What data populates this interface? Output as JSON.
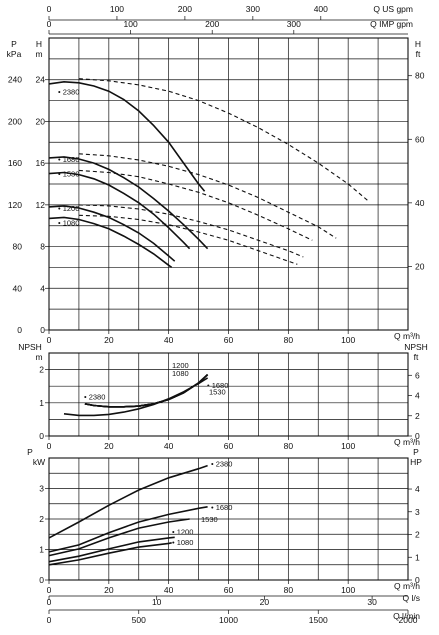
{
  "chart_data": [
    {
      "id": "head",
      "type": "line",
      "xlabel": "Q m³/h",
      "xlim": [
        0,
        120
      ],
      "xticks": [
        0,
        20,
        40,
        60,
        80,
        100
      ],
      "ylim": [
        0,
        28
      ],
      "yticks": [
        0,
        4,
        8,
        12,
        16,
        20,
        24
      ],
      "ylabel_left": "H",
      "yunit_left": "m",
      "y2label_left": "P",
      "y2unit_left": "kPa",
      "y2ticks_left": [
        0,
        40,
        80,
        120,
        160,
        200,
        240
      ],
      "ylabel_right": "H",
      "yunit_right": "ft",
      "yticks_right": [
        20,
        40,
        60,
        80
      ],
      "series": [
        {
          "name": "2380",
          "style": "solid",
          "x": [
            0,
            5,
            10,
            15,
            20,
            25,
            30,
            35,
            40,
            45,
            50,
            52
          ],
          "y": [
            23.6,
            23.8,
            23.7,
            23.4,
            22.9,
            22.1,
            21.0,
            19.6,
            18.0,
            16.0,
            14.0,
            13.3
          ]
        },
        {
          "name": "1680",
          "style": "solid",
          "x": [
            0,
            5,
            10,
            15,
            20,
            25,
            30,
            35,
            40,
            45,
            50,
            53
          ],
          "y": [
            16.5,
            16.6,
            16.4,
            16.0,
            15.4,
            14.6,
            13.7,
            12.6,
            11.4,
            10.1,
            8.7,
            7.8
          ]
        },
        {
          "name": "1530",
          "style": "solid",
          "x": [
            0,
            5,
            10,
            15,
            20,
            25,
            30,
            35,
            40,
            45,
            47
          ],
          "y": [
            15.0,
            15.1,
            14.9,
            14.5,
            13.9,
            13.1,
            12.2,
            11.1,
            9.8,
            8.4,
            7.8
          ]
        },
        {
          "name": "1200",
          "style": "solid",
          "x": [
            0,
            5,
            10,
            15,
            20,
            25,
            30,
            35,
            40,
            42
          ],
          "y": [
            11.8,
            11.9,
            11.7,
            11.3,
            10.8,
            10.1,
            9.3,
            8.3,
            7.1,
            6.6
          ]
        },
        {
          "name": "1080",
          "style": "solid",
          "x": [
            0,
            5,
            10,
            15,
            20,
            25,
            30,
            35,
            40,
            41
          ],
          "y": [
            10.7,
            10.8,
            10.6,
            10.2,
            9.7,
            9.0,
            8.2,
            7.3,
            6.2,
            6.0
          ]
        },
        {
          "name": "2380",
          "style": "dashed",
          "x": [
            10,
            20,
            30,
            40,
            50,
            60,
            70,
            80,
            90,
            100,
            107
          ],
          "y": [
            24.1,
            23.9,
            23.5,
            22.9,
            22.0,
            20.8,
            19.4,
            17.8,
            16.0,
            14.0,
            12.3
          ]
        },
        {
          "name": "1680",
          "style": "dashed",
          "x": [
            10,
            20,
            30,
            40,
            50,
            60,
            70,
            80,
            90,
            96
          ],
          "y": [
            16.9,
            16.7,
            16.3,
            15.7,
            14.9,
            13.9,
            12.7,
            11.3,
            9.9,
            8.8
          ]
        },
        {
          "name": "1530",
          "style": "dashed",
          "x": [
            10,
            20,
            30,
            40,
            50,
            60,
            70,
            80,
            88
          ],
          "y": [
            15.3,
            15.1,
            14.7,
            14.0,
            13.2,
            12.2,
            11.0,
            9.7,
            8.6
          ]
        },
        {
          "name": "1200",
          "style": "dashed",
          "x": [
            10,
            20,
            30,
            40,
            50,
            60,
            70,
            80,
            85
          ],
          "y": [
            12.0,
            11.9,
            11.6,
            11.1,
            10.4,
            9.6,
            8.6,
            7.6,
            7.0
          ]
        },
        {
          "name": "1080",
          "style": "dashed",
          "x": [
            10,
            20,
            30,
            40,
            50,
            60,
            70,
            80,
            83
          ],
          "y": [
            11.0,
            10.9,
            10.6,
            10.1,
            9.4,
            8.6,
            7.6,
            6.6,
            6.3
          ]
        }
      ]
    },
    {
      "id": "npsh",
      "type": "line",
      "xlabel": "Q m³/h",
      "xlim": [
        0,
        120
      ],
      "xticks": [
        0,
        20,
        40,
        60,
        80,
        100
      ],
      "ylim": [
        0,
        2.5
      ],
      "yticks": [
        0,
        1,
        2
      ],
      "ylabel_left": "NPSH",
      "yunit_left": "m",
      "ylabel_right": "NPSH",
      "yunit_right": "ft",
      "yticks_right": [
        0,
        2,
        4,
        6
      ],
      "series": [
        {
          "name": "2380",
          "x": [
            5,
            10,
            15,
            20,
            25,
            30,
            35,
            40,
            45,
            50,
            53
          ],
          "y": [
            0.67,
            0.62,
            0.62,
            0.65,
            0.72,
            0.82,
            0.95,
            1.12,
            1.33,
            1.58,
            1.75
          ]
        },
        {
          "name": "1680",
          "x": [
            12,
            15,
            20,
            25,
            30,
            35,
            40,
            45,
            50,
            53
          ],
          "y": [
            0.97,
            0.92,
            0.88,
            0.88,
            0.9,
            0.97,
            1.1,
            1.3,
            1.6,
            1.85
          ]
        },
        {
          "name": "1530",
          "x": [
            12,
            15,
            20,
            25,
            30,
            35,
            40,
            45,
            50,
            53
          ],
          "y": [
            0.97,
            0.92,
            0.88,
            0.88,
            0.9,
            0.97,
            1.1,
            1.3,
            1.6,
            1.85
          ]
        },
        {
          "name": "1200",
          "x": [
            12,
            15,
            20,
            25,
            30,
            35,
            40,
            45,
            50,
            53
          ],
          "y": [
            0.97,
            0.92,
            0.88,
            0.88,
            0.9,
            0.97,
            1.1,
            1.3,
            1.6,
            1.85
          ]
        },
        {
          "name": "1080",
          "x": [
            12,
            15,
            20,
            25,
            30,
            35,
            40,
            45,
            50,
            53
          ],
          "y": [
            0.97,
            0.92,
            0.88,
            0.88,
            0.9,
            0.97,
            1.1,
            1.3,
            1.6,
            1.85
          ]
        }
      ]
    },
    {
      "id": "power",
      "type": "line",
      "xlabel": "Q m³/h",
      "xlim": [
        0,
        120
      ],
      "xticks": [
        0,
        20,
        40,
        60,
        80,
        100
      ],
      "ylim": [
        0,
        4
      ],
      "yticks": [
        0,
        1,
        2,
        3
      ],
      "ylabel_left": "P",
      "yunit_left": "kW",
      "ylabel_right": "P",
      "yunit_right": "HP",
      "yticks_right": [
        0,
        1,
        2,
        3,
        4
      ],
      "series": [
        {
          "name": "2380",
          "x": [
            0,
            10,
            20,
            30,
            40,
            50,
            53
          ],
          "y": [
            1.38,
            1.9,
            2.45,
            2.95,
            3.35,
            3.65,
            3.75
          ]
        },
        {
          "name": "1680",
          "x": [
            0,
            10,
            20,
            30,
            40,
            50,
            53
          ],
          "y": [
            0.92,
            1.15,
            1.55,
            1.9,
            2.15,
            2.35,
            2.4
          ]
        },
        {
          "name": "1530",
          "x": [
            0,
            10,
            20,
            30,
            40,
            47
          ],
          "y": [
            0.8,
            1.02,
            1.38,
            1.7,
            1.9,
            2.0
          ]
        },
        {
          "name": "1200",
          "x": [
            0,
            10,
            20,
            30,
            40,
            42
          ],
          "y": [
            0.6,
            0.78,
            1.02,
            1.25,
            1.38,
            1.4
          ]
        },
        {
          "name": "1080",
          "x": [
            0,
            10,
            20,
            30,
            40,
            41
          ],
          "y": [
            0.5,
            0.66,
            0.88,
            1.08,
            1.2,
            1.22
          ]
        }
      ]
    }
  ],
  "top_axes": [
    {
      "label": "Q US gpm",
      "ticks": [
        0,
        100,
        200,
        300,
        400
      ],
      "per_m3h": 4.4029
    },
    {
      "label": "Q IMP gpm",
      "ticks": [
        0,
        100,
        200,
        300
      ],
      "per_m3h": 3.6662
    }
  ],
  "bottom_axes": [
    {
      "label": "Q l/s",
      "ticks": [
        0,
        10,
        20,
        30
      ],
      "per_m3h": 0.27778
    },
    {
      "label": "Q l/min",
      "ticks": [
        0,
        500,
        1000,
        1500,
        2000
      ],
      "per_m3h": 16.6667
    }
  ]
}
